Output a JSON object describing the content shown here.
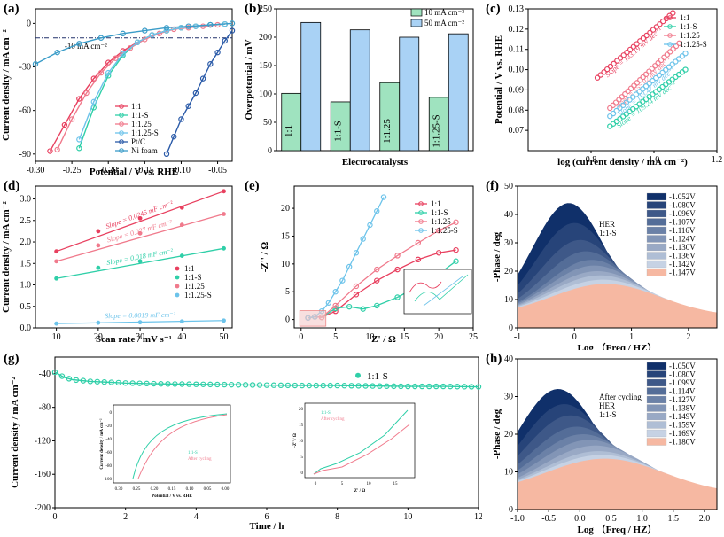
{
  "colors": {
    "red": "#e8405f",
    "teal": "#2fcfa8",
    "pink": "#f07a8c",
    "lightblue": "#6cc3ea",
    "ptc": "#2a5aa8",
    "nifoam": "#3a9cc8",
    "bar10": "#9fe3bf",
    "bar50": "#a9d2f5",
    "heatmap_dark": "#10306a",
    "heatmap_light": "#f6b8a2"
  },
  "chart_data": [
    {
      "id": "a",
      "panel_label": "(a)",
      "type": "line",
      "xlabel": "Potential / V vs. RHE",
      "ylabel": "Current density / mA cm⁻²",
      "xlim": [
        -0.3,
        -0.03
      ],
      "ylim": [
        -95,
        10
      ],
      "xticks": [
        "-0.30",
        "-0.25",
        "-0.20",
        "-0.15",
        "-0.10",
        "-0.05"
      ],
      "yticks": [
        "0",
        "-30",
        "-60",
        "-90"
      ],
      "ref_line": {
        "y": -10,
        "label": "-10 mA cm⁻²"
      },
      "series": [
        {
          "name": "1:1",
          "color": "red",
          "x": [
            -0.28,
            -0.26,
            -0.24,
            -0.22,
            -0.2,
            -0.18,
            -0.16,
            -0.14,
            -0.12,
            -0.1,
            -0.08,
            -0.06,
            -0.04
          ],
          "y": [
            -88,
            -70,
            -52,
            -38,
            -27,
            -19,
            -13,
            -8,
            -5,
            -3,
            -2,
            -1,
            -0.5
          ]
        },
        {
          "name": "1:1-S",
          "color": "teal",
          "x": [
            -0.24,
            -0.22,
            -0.2,
            -0.18,
            -0.16,
            -0.14,
            -0.12,
            -0.1,
            -0.08,
            -0.06,
            -0.04
          ],
          "y": [
            -86,
            -58,
            -36,
            -22,
            -13,
            -8,
            -5,
            -3,
            -2,
            -1,
            -0.5
          ]
        },
        {
          "name": "1:1.25",
          "color": "pink",
          "x": [
            -0.27,
            -0.25,
            -0.23,
            -0.21,
            -0.19,
            -0.17,
            -0.15,
            -0.13,
            -0.11,
            -0.09,
            -0.07,
            -0.05
          ],
          "y": [
            -87,
            -66,
            -48,
            -34,
            -24,
            -17,
            -11,
            -7,
            -4,
            -3,
            -2,
            -1
          ]
        },
        {
          "name": "1:1.25-S",
          "color": "lightblue",
          "x": [
            -0.24,
            -0.22,
            -0.2,
            -0.18,
            -0.16,
            -0.14,
            -0.12,
            -0.1,
            -0.08,
            -0.06,
            -0.04
          ],
          "y": [
            -80,
            -54,
            -34,
            -21,
            -13,
            -8,
            -5,
            -3,
            -2,
            -1,
            -0.5
          ]
        },
        {
          "name": "Pt/C",
          "color": "ptc",
          "x": [
            -0.12,
            -0.11,
            -0.1,
            -0.09,
            -0.08,
            -0.07,
            -0.06,
            -0.05,
            -0.04,
            -0.03
          ],
          "y": [
            -90,
            -78,
            -66,
            -57,
            -48,
            -38,
            -28,
            -20,
            -12,
            -5
          ]
        },
        {
          "name": "Ni foam",
          "color": "nifoam",
          "x": [
            -0.3,
            -0.27,
            -0.24,
            -0.21,
            -0.18,
            -0.15,
            -0.12,
            -0.09,
            -0.06,
            -0.03
          ],
          "y": [
            -28,
            -20,
            -14,
            -10,
            -7,
            -5,
            -3,
            -2,
            -1,
            0
          ]
        }
      ]
    },
    {
      "id": "b",
      "panel_label": "(b)",
      "type": "bar",
      "xlabel": "Electrocatalysts",
      "ylabel": "Overpotential / mV",
      "ylim": [
        0,
        250
      ],
      "yticks": [
        "0",
        "50",
        "100",
        "150",
        "200",
        "250"
      ],
      "categories": [
        "1:1",
        "1:1-S",
        "1:1.25",
        "1:1.25-S"
      ],
      "series": [
        {
          "name": "10 mA cm⁻²",
          "color": "bar10",
          "values": [
            101,
            86,
            120,
            94
          ]
        },
        {
          "name": "50 mA cm⁻²",
          "color": "bar50",
          "values": [
            226,
            213,
            200,
            206
          ]
        }
      ]
    },
    {
      "id": "c",
      "panel_label": "(c)",
      "type": "scatter",
      "xlabel": "log (current density / mA cm⁻²)",
      "ylabel": "Potential / V vs. RHE",
      "xlim": [
        0.6,
        1.2
      ],
      "ylim": [
        0.06,
        0.13
      ],
      "xticks": [
        "0.8",
        "1.0",
        "1.2"
      ],
      "yticks": [
        "0.07",
        "0.08",
        "0.09",
        "0.10",
        "0.11",
        "0.12",
        "0.13"
      ],
      "series": [
        {
          "name": "1:1",
          "color": "red",
          "x0": 0.82,
          "x1": 1.06,
          "y0": 0.096,
          "y1": 0.128,
          "slope_label": "Slope = 133.19 mV dec⁻¹"
        },
        {
          "name": "1:1-S",
          "color": "teal",
          "x0": 0.86,
          "x1": 1.1,
          "y0": 0.072,
          "y1": 0.1,
          "slope_label": "Slope = 109.24 mV dec⁻¹"
        },
        {
          "name": "1:1.25",
          "color": "pink",
          "x0": 0.86,
          "x1": 1.08,
          "y0": 0.081,
          "y1": 0.113,
          "slope_label": "Slope = 155.02 mV dec⁻¹"
        },
        {
          "name": "1:1.25-S",
          "color": "lightblue",
          "x0": 0.86,
          "x1": 1.1,
          "y0": 0.077,
          "y1": 0.108,
          "slope_label": "Slope = 113.47 mV dec⁻¹"
        }
      ]
    },
    {
      "id": "d",
      "panel_label": "(d)",
      "type": "scatter",
      "xlabel": "Scan rate / mV s⁻¹",
      "ylabel": "Current density / mA cm⁻²",
      "xlim": [
        5,
        52
      ],
      "ylim": [
        0,
        3.3
      ],
      "xticks": [
        "10",
        "20",
        "30",
        "40",
        "50"
      ],
      "yticks": [
        "0.0",
        "0.5",
        "1.0",
        "1.5",
        "2.0",
        "2.5",
        "3.0"
      ],
      "series": [
        {
          "name": "1:1",
          "color": "red",
          "x": [
            10,
            20,
            30,
            40,
            50
          ],
          "y": [
            1.78,
            2.25,
            2.55,
            2.8,
            3.18
          ],
          "slope_label": "Slope = 0.0245 mF cm⁻²"
        },
        {
          "name": "1:1-S",
          "color": "teal",
          "x": [
            10,
            20,
            30,
            40,
            50
          ],
          "y": [
            1.15,
            1.4,
            1.55,
            1.68,
            1.85
          ],
          "slope_label": "Slope = 0.018 mF cm⁻²"
        },
        {
          "name": "1:1.25",
          "color": "pink",
          "x": [
            10,
            20,
            30,
            40,
            50
          ],
          "y": [
            1.55,
            1.92,
            2.2,
            2.4,
            2.65
          ],
          "slope_label": "Slope = 0.027 mF cm⁻²"
        },
        {
          "name": "1:1.25-S",
          "color": "lightblue",
          "x": [
            10,
            20,
            30,
            40,
            50
          ],
          "y": [
            0.1,
            0.12,
            0.13,
            0.15,
            0.17
          ],
          "slope_label": "Slope = 0.0019 mF cm⁻²"
        }
      ]
    },
    {
      "id": "e",
      "panel_label": "(e)",
      "type": "scatter",
      "xlabel": "Z' / Ω",
      "ylabel": "-Z'' / Ω",
      "xlim": [
        -1,
        25
      ],
      "ylim": [
        -1.5,
        24
      ],
      "xticks": [
        "0",
        "5",
        "10",
        "15",
        "20",
        "25"
      ],
      "yticks": [
        "0",
        "5",
        "10",
        "15",
        "20"
      ],
      "series": [
        {
          "name": "1:1",
          "color": "red",
          "x": [
            1,
            2,
            3,
            5,
            8,
            11,
            14,
            17,
            20,
            22.5
          ],
          "y": [
            0.3,
            0.5,
            0.4,
            1.5,
            4.5,
            7,
            9,
            10.8,
            12,
            12.5
          ]
        },
        {
          "name": "1:1-S",
          "color": "teal",
          "x": [
            1,
            2,
            3,
            5,
            7,
            9,
            11,
            14,
            17,
            20,
            22.5
          ],
          "y": [
            0.3,
            0.5,
            0.4,
            2,
            2.3,
            1.9,
            2.5,
            4,
            6,
            8.2,
            10.5
          ]
        },
        {
          "name": "1:1.25",
          "color": "pink",
          "x": [
            1,
            2,
            3,
            5,
            8,
            11,
            14,
            17,
            20,
            22.5
          ],
          "y": [
            0.3,
            0.5,
            0.4,
            2.5,
            6,
            9,
            11.5,
            13.8,
            16,
            17.5
          ]
        },
        {
          "name": "1:1.25-S",
          "color": "lightblue",
          "x": [
            1,
            2,
            3,
            4,
            5,
            6,
            7,
            8,
            9,
            10,
            11,
            12
          ],
          "y": [
            0.3,
            0.5,
            1.5,
            3,
            5,
            7,
            9.5,
            12,
            14.5,
            17,
            19.5,
            22
          ]
        }
      ]
    },
    {
      "id": "f",
      "panel_label": "(f)",
      "type": "area",
      "xlabel": "Log （Freq / HZ）",
      "ylabel": "-Phase / deg",
      "xlim": [
        -1,
        2.5
      ],
      "ylim": [
        0,
        50
      ],
      "xticks": [
        "-1",
        "0",
        "1",
        "2"
      ],
      "yticks": [
        "0",
        "10",
        "20",
        "30",
        "40",
        "50"
      ],
      "annotation": [
        "HER",
        "1:1-S"
      ],
      "potentials": [
        "-1.052V",
        "-1.080V",
        "-1.096V",
        "-1.107V",
        "-1.116V",
        "-1.124V",
        "-1.130V",
        "-1.136V",
        "-1.142V",
        "-1.147V"
      ],
      "peaks": [
        {
          "x": -0.1,
          "y": 44
        },
        {
          "x": 0.0,
          "y": 37
        },
        {
          "x": 0.1,
          "y": 31
        },
        {
          "x": 0.2,
          "y": 27
        },
        {
          "x": 0.3,
          "y": 24
        },
        {
          "x": 0.35,
          "y": 22
        },
        {
          "x": 0.4,
          "y": 20
        },
        {
          "x": 0.45,
          "y": 18.5
        },
        {
          "x": 0.5,
          "y": 17
        },
        {
          "x": 0.55,
          "y": 15.5
        }
      ]
    },
    {
      "id": "g",
      "panel_label": "(g)",
      "type": "line",
      "xlabel": "Time / h",
      "ylabel": "Current density / mA cm⁻²",
      "xlim": [
        0,
        12
      ],
      "ylim": [
        -200,
        -20
      ],
      "xticks": [
        "0",
        "2",
        "4",
        "6",
        "8",
        "10",
        "12"
      ],
      "yticks": [
        "-40",
        "-80",
        "-120",
        "-160",
        "-200"
      ],
      "series": [
        {
          "name": "1:1-S",
          "color": "teal",
          "x": [
            0,
            0.25,
            0.5,
            1,
            2,
            3,
            4,
            5,
            6,
            7,
            8,
            9,
            10,
            11,
            12
          ],
          "y": [
            -38,
            -44,
            -47,
            -49,
            -51,
            -52,
            -52.5,
            -53,
            -53.5,
            -54,
            -54,
            -54.5,
            -55,
            -55,
            -55.5
          ]
        }
      ],
      "inset1": {
        "xlabel": "Potential / V vs. RHE",
        "ylabel": "Current density / mA cm⁻²",
        "xticks": [
          "0.30",
          "0.25",
          "0.20",
          "0.15",
          "0.10",
          "0.05",
          "0.00"
        ],
        "yticks": [
          "0",
          "-20",
          "-40",
          "-60",
          "-80",
          "-100"
        ],
        "legend": [
          "1:1-S",
          "After cycling"
        ]
      },
      "inset2": {
        "xlabel": "Z' / Ω",
        "ylabel": "-Z'' / Ω",
        "xticks": [
          "0",
          "5",
          "10",
          "15"
        ],
        "yticks": [
          "0",
          "5",
          "10",
          "15",
          "20"
        ],
        "legend": [
          "1:1-S",
          "After cycling"
        ]
      }
    },
    {
      "id": "h",
      "panel_label": "(h)",
      "type": "area",
      "xlabel": "Log （Freq / HZ）",
      "ylabel": "-Phase / deg",
      "xlim": [
        -1.0,
        2.2
      ],
      "ylim": [
        0,
        40
      ],
      "xticks": [
        "-1.0",
        "-0.5",
        "0.0",
        "0.5",
        "1.0",
        "1.5",
        "2.0"
      ],
      "yticks": [
        "0",
        "10",
        "20",
        "30",
        "40"
      ],
      "annotation": [
        "After cycling",
        "HER",
        "1:1-S"
      ],
      "potentials": [
        "-1.050V",
        "-1.080V",
        "-1.099V",
        "-1.114V",
        "-1.127V",
        "-1.138V",
        "-1.149V",
        "-1.159V",
        "-1.169V",
        "-1.180V"
      ],
      "peaks": [
        {
          "x": -0.35,
          "y": 32
        },
        {
          "x": -0.25,
          "y": 28
        },
        {
          "x": -0.15,
          "y": 25
        },
        {
          "x": -0.05,
          "y": 22
        },
        {
          "x": 0.05,
          "y": 20
        },
        {
          "x": 0.15,
          "y": 18.5
        },
        {
          "x": 0.25,
          "y": 17
        },
        {
          "x": 0.3,
          "y": 15.5
        },
        {
          "x": 0.35,
          "y": 14.5
        },
        {
          "x": 0.4,
          "y": 13.5
        }
      ]
    }
  ]
}
